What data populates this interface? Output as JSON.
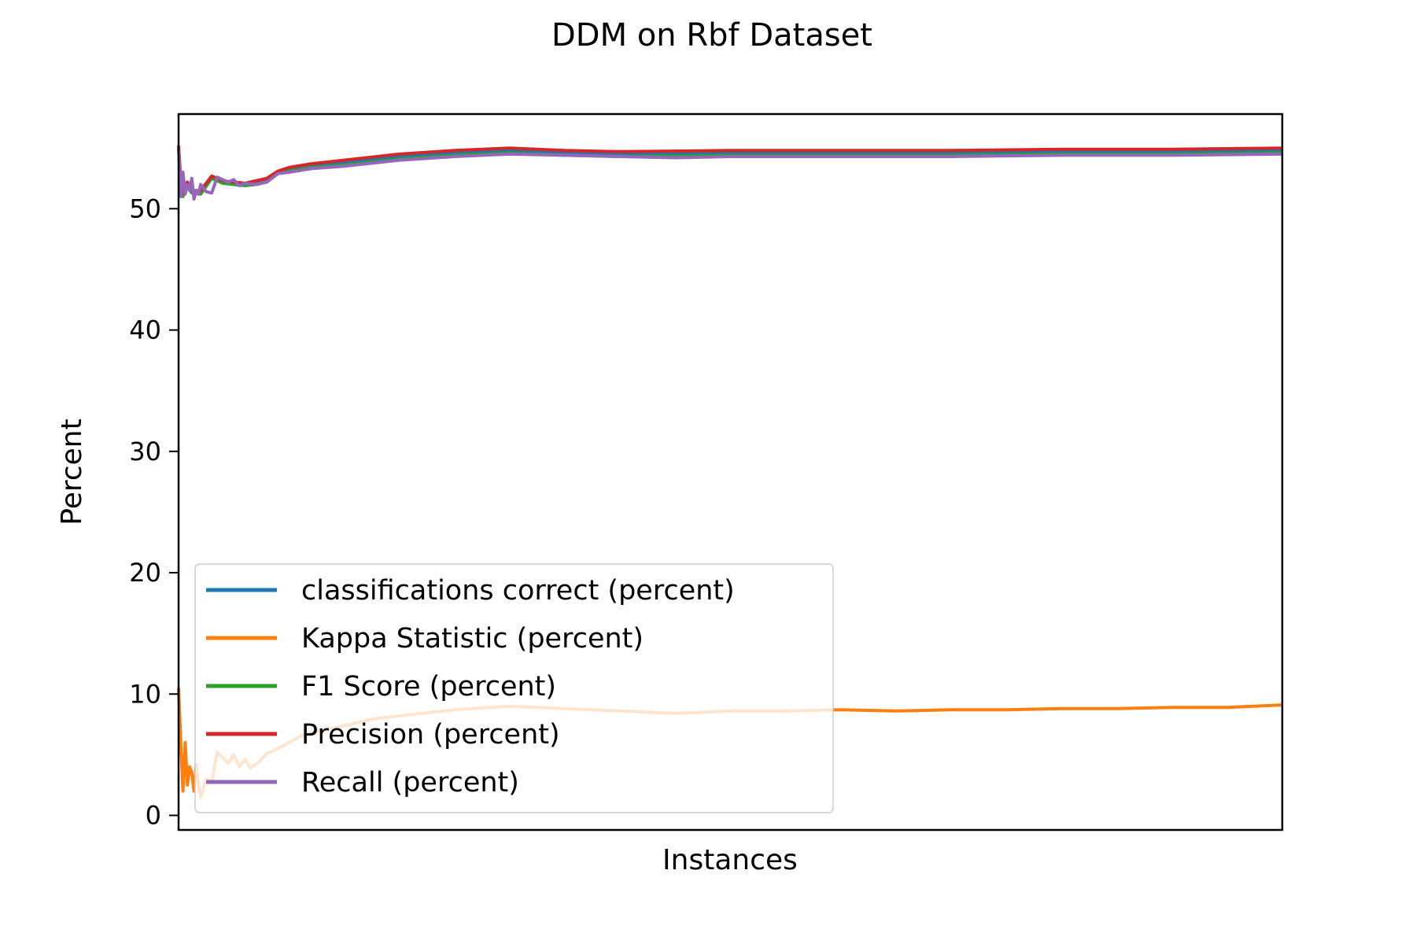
{
  "chart_data": {
    "type": "line",
    "title": "DDM on Rbf Dataset",
    "xlabel": "Instances",
    "ylabel": "Percent",
    "ylim": [
      -1.2,
      57.8
    ],
    "xlim": [
      0,
      1000
    ],
    "yticks": [
      0,
      10,
      20,
      30,
      40,
      50
    ],
    "xticks_visible": false,
    "grid": false,
    "legend_position": "lower-left",
    "series": [
      {
        "name": "classifications correct (percent)",
        "color": "#1f77b4",
        "x": [
          0,
          2,
          4,
          8,
          12,
          20,
          30,
          40,
          50,
          60,
          70,
          80,
          90,
          100,
          120,
          150,
          200,
          250,
          300,
          350,
          400,
          500,
          600,
          700,
          800,
          900,
          1000
        ],
        "y": [
          55.0,
          52.0,
          51.2,
          52.0,
          51.4,
          51.3,
          52.6,
          52.2,
          52.1,
          52.0,
          52.1,
          52.3,
          53.0,
          53.2,
          53.5,
          53.8,
          54.3,
          54.6,
          54.8,
          54.6,
          54.5,
          54.6,
          54.6,
          54.6,
          54.7,
          54.7,
          54.8
        ]
      },
      {
        "name": "Kappa Statistic (percent)",
        "color": "#ff7f0e",
        "x": [
          0,
          2,
          4,
          6,
          8,
          10,
          12,
          14,
          16,
          18,
          20,
          25,
          30,
          35,
          40,
          45,
          50,
          55,
          60,
          65,
          70,
          75,
          80,
          90,
          100,
          110,
          120,
          140,
          160,
          180,
          200,
          250,
          300,
          350,
          400,
          450,
          500,
          550,
          600,
          650,
          700,
          750,
          800,
          850,
          900,
          950,
          1000
        ],
        "y": [
          10.5,
          6.0,
          2.0,
          6.0,
          2.5,
          4.0,
          3.5,
          2.0,
          4.2,
          2.5,
          1.5,
          3.0,
          2.8,
          5.2,
          4.8,
          4.3,
          5.0,
          4.0,
          4.6,
          3.9,
          4.2,
          4.6,
          5.1,
          5.5,
          6.0,
          6.5,
          6.8,
          7.2,
          7.6,
          8.0,
          8.2,
          8.7,
          9.0,
          8.8,
          8.6,
          8.4,
          8.6,
          8.6,
          8.7,
          8.6,
          8.7,
          8.7,
          8.8,
          8.8,
          8.9,
          8.9,
          9.1
        ]
      },
      {
        "name": "F1 Score (percent)",
        "color": "#2ca02c",
        "x": [
          0,
          2,
          4,
          8,
          12,
          20,
          30,
          40,
          50,
          60,
          70,
          80,
          90,
          100,
          120,
          150,
          200,
          250,
          300,
          350,
          400,
          500,
          600,
          700,
          800,
          900,
          1000
        ],
        "y": [
          55.0,
          51.5,
          51.0,
          51.8,
          51.3,
          51.2,
          52.5,
          52.1,
          52.0,
          51.9,
          52.0,
          52.2,
          52.9,
          53.1,
          53.4,
          53.6,
          54.1,
          54.4,
          54.6,
          54.4,
          54.3,
          54.4,
          54.4,
          54.4,
          54.5,
          54.5,
          54.6
        ]
      },
      {
        "name": "Precision (percent)",
        "color": "#d62728",
        "x": [
          0,
          2,
          4,
          8,
          12,
          20,
          30,
          40,
          50,
          60,
          70,
          80,
          90,
          100,
          120,
          150,
          200,
          250,
          300,
          350,
          400,
          500,
          600,
          700,
          800,
          900,
          1000
        ],
        "y": [
          55.2,
          52.3,
          51.3,
          52.2,
          51.5,
          51.5,
          52.7,
          52.3,
          52.2,
          52.1,
          52.3,
          52.5,
          53.1,
          53.4,
          53.7,
          54.0,
          54.5,
          54.8,
          55.0,
          54.8,
          54.7,
          54.8,
          54.8,
          54.8,
          54.9,
          54.9,
          55.0
        ]
      },
      {
        "name": "Recall (percent)",
        "color": "#9467bd",
        "x": [
          0,
          2,
          4,
          6,
          8,
          10,
          12,
          14,
          16,
          18,
          20,
          25,
          30,
          35,
          40,
          45,
          50,
          55,
          60,
          70,
          80,
          90,
          100,
          120,
          150,
          200,
          250,
          300,
          350,
          400,
          450,
          500,
          600,
          700,
          800,
          900,
          1000
        ],
        "y": [
          55.0,
          51.0,
          53.0,
          51.2,
          52.0,
          51.5,
          52.5,
          50.8,
          51.5,
          51.2,
          52.0,
          51.4,
          51.3,
          52.6,
          52.4,
          52.2,
          52.4,
          51.9,
          52.1,
          52.0,
          52.2,
          52.9,
          53.0,
          53.3,
          53.5,
          54.0,
          54.3,
          54.5,
          54.4,
          54.3,
          54.2,
          54.3,
          54.3,
          54.3,
          54.4,
          54.4,
          54.5
        ]
      }
    ]
  }
}
